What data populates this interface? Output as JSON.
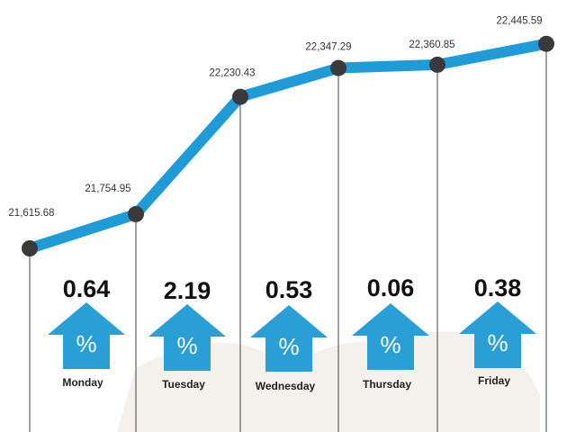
{
  "colors": {
    "line": "#1f9bd7",
    "marker": "#3a3a3c",
    "arrow": "#2a9fd6",
    "drop_line": "#444444",
    "watermark": "#f1eee8"
  },
  "icons": {
    "arrow": "up-arrow-icon",
    "symbol": "percent-icon"
  },
  "chart_data": {
    "type": "line",
    "title": "",
    "xlabel": "",
    "ylabel": "",
    "ylim": [
      21550,
      22470
    ],
    "points": [
      {
        "value": 21615.68,
        "label": "21,615.68"
      },
      {
        "value": 21754.95,
        "label": "21,754.95"
      },
      {
        "value": 22230.43,
        "label": "22,230.43"
      },
      {
        "value": 22347.29,
        "label": "22,347.29"
      },
      {
        "value": 22360.85,
        "label": "22,360.85"
      },
      {
        "value": 22445.59,
        "label": "22,445.59"
      }
    ],
    "daily_changes": [
      {
        "day": "Monday",
        "change": "0.64",
        "symbol": "%"
      },
      {
        "day": "Tuesday",
        "change": "2.19",
        "symbol": "%"
      },
      {
        "day": "Wednesday",
        "change": "0.53",
        "symbol": "%"
      },
      {
        "day": "Thursday",
        "change": "0.06",
        "symbol": "%"
      },
      {
        "day": "Friday",
        "change": "0.38",
        "symbol": "%"
      }
    ]
  }
}
